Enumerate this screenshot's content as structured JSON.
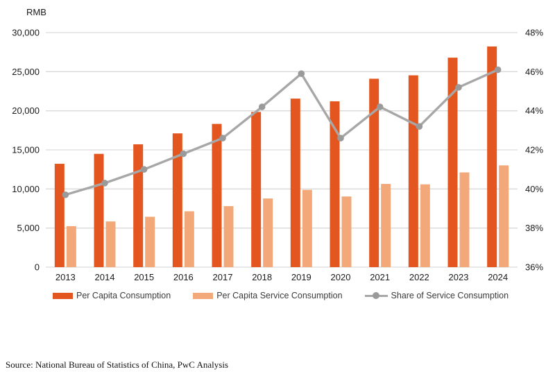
{
  "source_note": "Source: National Bureau of Statistics of China, PwC Analysis",
  "chart_data": {
    "type": "combo-bar-line",
    "title": "",
    "categories": [
      "2013",
      "2014",
      "2015",
      "2016",
      "2017",
      "2018",
      "2019",
      "2020",
      "2021",
      "2022",
      "2023",
      "2024"
    ],
    "left_axis": {
      "label": "RMB",
      "min": 0,
      "max": 30000,
      "ticks": [
        "30,000",
        "25,000",
        "20,000",
        "15,000",
        "10,000",
        "5,000",
        "0"
      ]
    },
    "right_axis": {
      "min": 36,
      "max": 48,
      "ticks": [
        "48%",
        "46%",
        "44%",
        "42%",
        "40%",
        "38%",
        "36%"
      ]
    },
    "bar_series": [
      {
        "name": "Per Capita Consumption",
        "axis": "left",
        "color": "#E4561F",
        "values": [
          13220,
          14491,
          15712,
          17111,
          18322,
          19853,
          21559,
          21210,
          24100,
          24538,
          26796,
          28227
        ]
      },
      {
        "name": "Per Capita Service Consumption",
        "axis": "left",
        "color": "#F2A878",
        "values": [
          5246,
          5842,
          6443,
          7144,
          7804,
          8781,
          9886,
          9037,
          10645,
          10590,
          12114,
          13016
        ]
      }
    ],
    "line_series": [
      {
        "name": "Share of Service Consumption",
        "axis": "right",
        "unit": "%",
        "color": "#A7A7A7",
        "marker_color": "#9A9A9A",
        "values": [
          39.7,
          40.3,
          41.0,
          41.8,
          42.6,
          44.2,
          45.9,
          42.6,
          44.2,
          43.2,
          45.2,
          46.1
        ]
      }
    ],
    "gridlines": true,
    "gridline_color": "#D9D9D9",
    "legend_position": "bottom"
  }
}
